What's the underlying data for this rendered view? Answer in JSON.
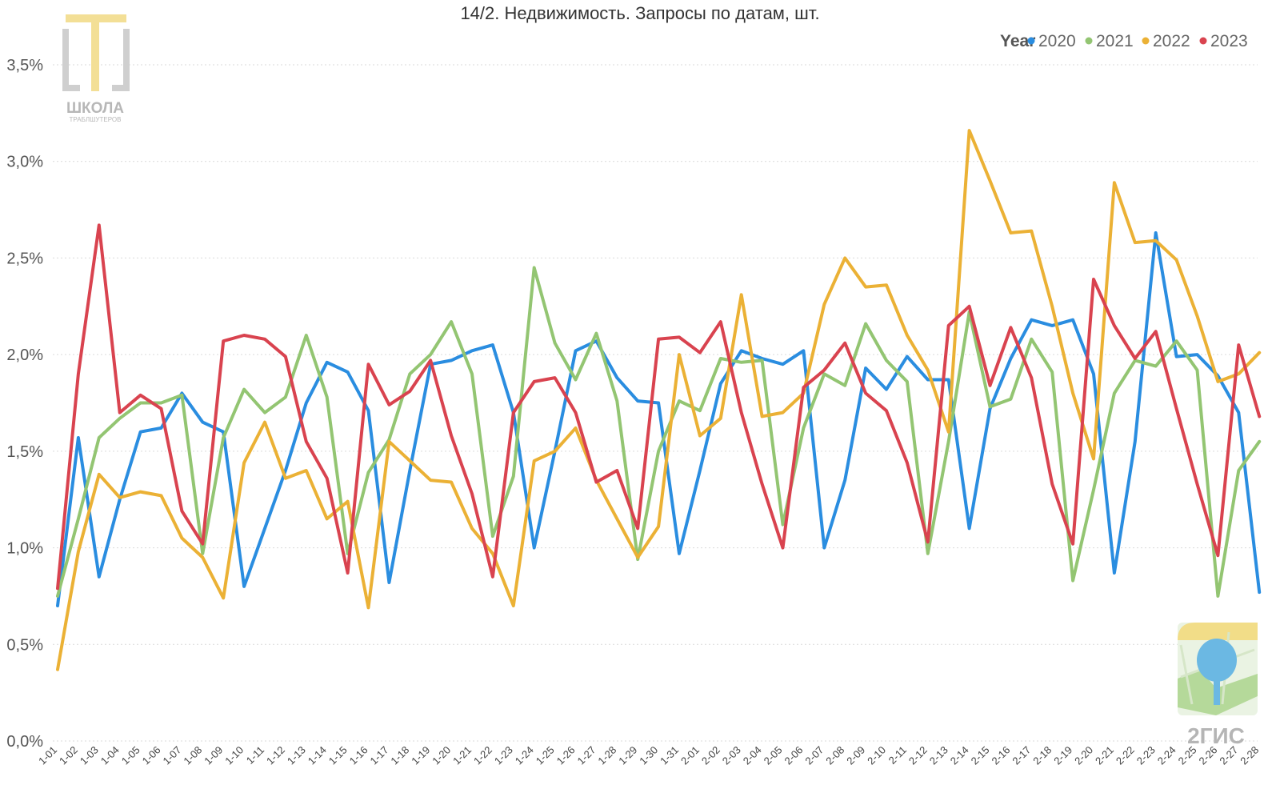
{
  "chart_data": {
    "type": "line",
    "title": "14/2. Недвижимость. Запросы по датам, шт.",
    "legend": {
      "title": "Year",
      "position": "top-right"
    },
    "xlabel": "",
    "ylabel": "",
    "ylim": [
      0,
      3.75
    ],
    "yticks": [
      0,
      0.5,
      1.0,
      1.5,
      2.0,
      2.5,
      3.0,
      3.5
    ],
    "ytick_labels": [
      "0,0%",
      "0,5%",
      "1,0%",
      "1,5%",
      "2,0%",
      "2,5%",
      "3,0%",
      "3,5%"
    ],
    "grid": true,
    "categories": [
      "1-01",
      "1-02",
      "1-03",
      "1-04",
      "1-05",
      "1-06",
      "1-07",
      "1-08",
      "1-09",
      "1-10",
      "1-11",
      "1-12",
      "1-13",
      "1-14",
      "1-15",
      "1-16",
      "1-17",
      "1-18",
      "1-19",
      "1-20",
      "1-21",
      "1-22",
      "1-23",
      "1-24",
      "1-25",
      "1-26",
      "1-27",
      "1-28",
      "1-29",
      "1-30",
      "1-31",
      "2-01",
      "2-02",
      "2-03",
      "2-04",
      "2-05",
      "2-06",
      "2-07",
      "2-08",
      "2-09",
      "2-10",
      "2-11",
      "2-12",
      "2-13",
      "2-14",
      "2-15",
      "2-16",
      "2-17",
      "2-18",
      "2-19",
      "2-20",
      "2-21",
      "2-22",
      "2-23",
      "2-24",
      "2-25",
      "2-26",
      "2-27",
      "2-28"
    ],
    "series": [
      {
        "name": "2020",
        "color": "#2a8de0",
        "values": [
          0.7,
          1.57,
          0.85,
          1.25,
          1.6,
          1.62,
          1.8,
          1.65,
          1.6,
          0.8,
          1.1,
          1.4,
          1.75,
          1.96,
          1.91,
          1.71,
          0.82,
          1.4,
          1.95,
          1.97,
          2.02,
          2.05,
          1.7,
          1.0,
          1.5,
          2.02,
          2.07,
          1.88,
          1.76,
          1.75,
          0.97,
          1.4,
          1.85,
          2.02,
          1.98,
          1.95,
          2.02,
          1.0,
          1.35,
          1.93,
          1.82,
          1.99,
          1.87,
          1.87,
          1.1,
          1.72,
          1.98,
          2.18,
          2.15,
          2.18,
          1.9,
          0.87,
          1.55,
          2.63,
          1.99,
          2.0,
          1.89,
          1.7,
          0.77
        ]
      },
      {
        "name": "2021",
        "color": "#93c572",
        "values": [
          0.75,
          1.15,
          1.57,
          1.67,
          1.75,
          1.75,
          1.79,
          0.97,
          1.57,
          1.82,
          1.7,
          1.78,
          2.1,
          1.78,
          0.97,
          1.39,
          1.56,
          1.9,
          2.0,
          2.17,
          1.9,
          1.06,
          1.37,
          2.45,
          2.06,
          1.87,
          2.11,
          1.76,
          0.94,
          1.5,
          1.76,
          1.71,
          1.98,
          1.96,
          1.97,
          1.12,
          1.62,
          1.9,
          1.84,
          2.16,
          1.97,
          1.86,
          0.97,
          1.55,
          2.22,
          1.73,
          1.77,
          2.08,
          1.91,
          0.83,
          1.3,
          1.8,
          1.97,
          1.94,
          2.07,
          1.92,
          0.75,
          1.4,
          1.55
        ]
      },
      {
        "name": "2022",
        "color": "#ebb135",
        "values": [
          0.37,
          0.98,
          1.38,
          1.26,
          1.29,
          1.27,
          1.05,
          0.95,
          0.74,
          1.44,
          1.65,
          1.36,
          1.4,
          1.15,
          1.24,
          0.69,
          1.55,
          1.45,
          1.35,
          1.34,
          1.1,
          0.97,
          0.7,
          1.45,
          1.5,
          1.62,
          1.35,
          1.15,
          0.95,
          1.11,
          2.0,
          1.58,
          1.67,
          2.31,
          1.68,
          1.7,
          1.8,
          2.26,
          2.5,
          2.35,
          2.36,
          2.1,
          1.92,
          1.6,
          3.16,
          2.9,
          2.63,
          2.64,
          2.25,
          1.8,
          1.46,
          2.89,
          2.58,
          2.59,
          2.49,
          2.2,
          1.86,
          1.9,
          2.01
        ]
      },
      {
        "name": "2023",
        "color": "#d9434f",
        "values": [
          0.79,
          1.9,
          2.67,
          1.7,
          1.79,
          1.72,
          1.19,
          1.02,
          2.07,
          2.1,
          2.08,
          1.99,
          1.55,
          1.36,
          0.87,
          1.95,
          1.74,
          1.81,
          1.97,
          1.58,
          1.28,
          0.85,
          1.7,
          1.86,
          1.88,
          1.7,
          1.34,
          1.4,
          1.1,
          2.08,
          2.09,
          2.01,
          2.17,
          1.7,
          1.33,
          1.0,
          1.83,
          1.92,
          2.06,
          1.8,
          1.71,
          1.44,
          1.03,
          2.15,
          2.25,
          1.84,
          2.14,
          1.88,
          1.33,
          1.02,
          2.39,
          2.15,
          1.98,
          2.12,
          1.72,
          1.33,
          0.96,
          2.05,
          1.68
        ]
      }
    ]
  },
  "logos": {
    "top_left": {
      "name": "ШКОЛА",
      "subtitle": "ТРАБЛШУТЕРОВ"
    },
    "bottom_right": {
      "name": "2ГИС"
    }
  }
}
